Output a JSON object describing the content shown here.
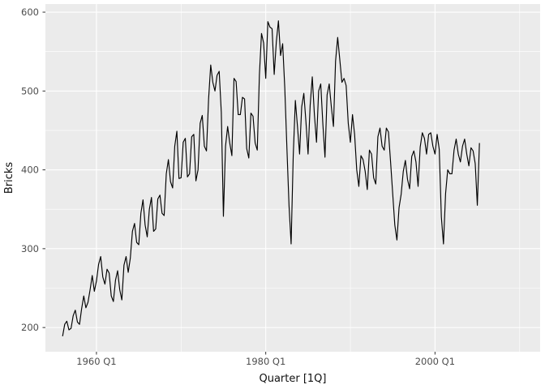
{
  "chart": {
    "x_title": "Quarter [1Q]",
    "y_title": "Bricks",
    "colors": {
      "panel_background": "#EBEBEB",
      "grid_major": "#FFFFFF",
      "grid_minor": "#F5F5F5",
      "series_line": "#000000",
      "tick_label": "#4D4D4D",
      "tick_mark": "#333333",
      "axis_title": "#111111",
      "outer_background": "#FFFFFF"
    }
  },
  "chart_data": {
    "type": "line",
    "title": "",
    "xlabel": "Quarter [1Q]",
    "ylabel": "Bricks",
    "legend": false,
    "grid": true,
    "series_name": "Bricks",
    "x_unit": "quarterly",
    "x_start": 1956.0,
    "x_step": 0.25,
    "x_first_label": "1956 Q1",
    "x_last_label": "2005 Q2",
    "x_domain": [
      1953.97,
      2012.42
    ],
    "y_domain": [
      169.3,
      610.3
    ],
    "x_ticks": [
      {
        "value": 1960.0,
        "label": "1960 Q1"
      },
      {
        "value": 1980.0,
        "label": "1980 Q1"
      },
      {
        "value": 2000.0,
        "label": "2000 Q1"
      }
    ],
    "x_minor_ticks": [
      1970.0,
      1990.0,
      2010.0
    ],
    "y_ticks": [
      200,
      300,
      400,
      500,
      600
    ],
    "y_minor_ticks": [
      250,
      350,
      450,
      550
    ],
    "values": [
      189,
      204,
      208,
      197,
      199,
      215,
      222,
      207,
      204,
      224,
      240,
      225,
      232,
      248,
      266,
      246,
      259,
      280,
      290,
      264,
      255,
      274,
      269,
      240,
      233,
      260,
      272,
      248,
      235,
      279,
      290,
      270,
      288,
      322,
      332,
      308,
      305,
      345,
      362,
      330,
      315,
      350,
      365,
      322,
      325,
      363,
      368,
      345,
      342,
      395,
      413,
      385,
      377,
      430,
      449,
      389,
      390,
      435,
      440,
      391,
      395,
      442,
      445,
      386,
      400,
      459,
      469,
      430,
      424,
      490,
      533,
      511,
      500,
      520,
      525,
      473,
      341,
      430,
      455,
      434,
      418,
      516,
      512,
      470,
      470,
      492,
      490,
      427,
      415,
      472,
      468,
      434,
      425,
      520,
      573,
      561,
      516,
      588,
      581,
      579,
      521,
      562,
      589,
      545,
      560,
      504,
      428,
      355,
      306,
      418,
      488,
      455,
      420,
      480,
      497,
      461,
      420,
      482,
      518,
      470,
      435,
      500,
      509,
      458,
      416,
      495,
      509,
      480,
      455,
      538,
      568,
      540,
      511,
      516,
      507,
      459,
      435,
      470,
      445,
      400,
      379,
      418,
      413,
      398,
      375,
      425,
      420,
      390,
      382,
      442,
      453,
      430,
      425,
      453,
      448,
      410,
      370,
      330,
      311,
      352,
      369,
      398,
      412,
      388,
      376,
      417,
      424,
      410,
      379,
      429,
      447,
      440,
      420,
      445,
      447,
      430,
      420,
      445,
      426,
      340,
      306,
      370,
      400,
      395,
      395,
      425,
      439,
      420,
      410,
      430,
      439,
      420,
      405,
      428,
      424,
      408,
      355,
      434
    ]
  }
}
